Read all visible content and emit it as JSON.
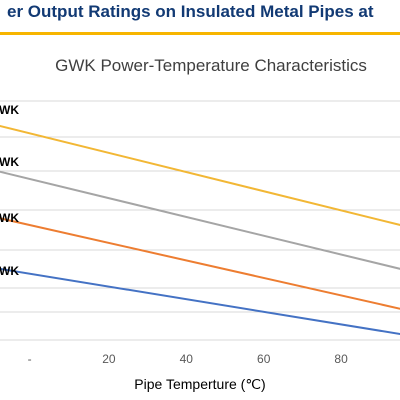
{
  "banner": {
    "text": "er Output Ratings on Insulated Metal Pipes at",
    "accent_color": "#f7b500",
    "text_color": "#123a74"
  },
  "chart_data": {
    "type": "line",
    "title": "GWK Power-Temperature Characteristics",
    "xlabel": "Pipe Temperture (℃)",
    "ylabel": "",
    "x_ticks": [
      "-",
      "20",
      "40",
      "60",
      "80"
    ],
    "xlim": [
      -10,
      100
    ],
    "grid": true,
    "series": [
      {
        "name": "WK",
        "color": "#f2b735",
        "x": [
          -10,
          100
        ],
        "y": [
          0.752,
          0.38
        ]
      },
      {
        "name": "WK",
        "color": "#a5a5a5",
        "x": [
          -10,
          100
        ],
        "y": [
          0.59,
          0.225
        ]
      },
      {
        "name": "WK",
        "color": "#ed7d31",
        "x": [
          -10,
          100
        ],
        "y": [
          0.425,
          0.085
        ]
      },
      {
        "name": "WK",
        "color": "#4472c4",
        "x": [
          -10,
          100
        ],
        "y": [
          0.245,
          0.0
        ]
      }
    ]
  }
}
